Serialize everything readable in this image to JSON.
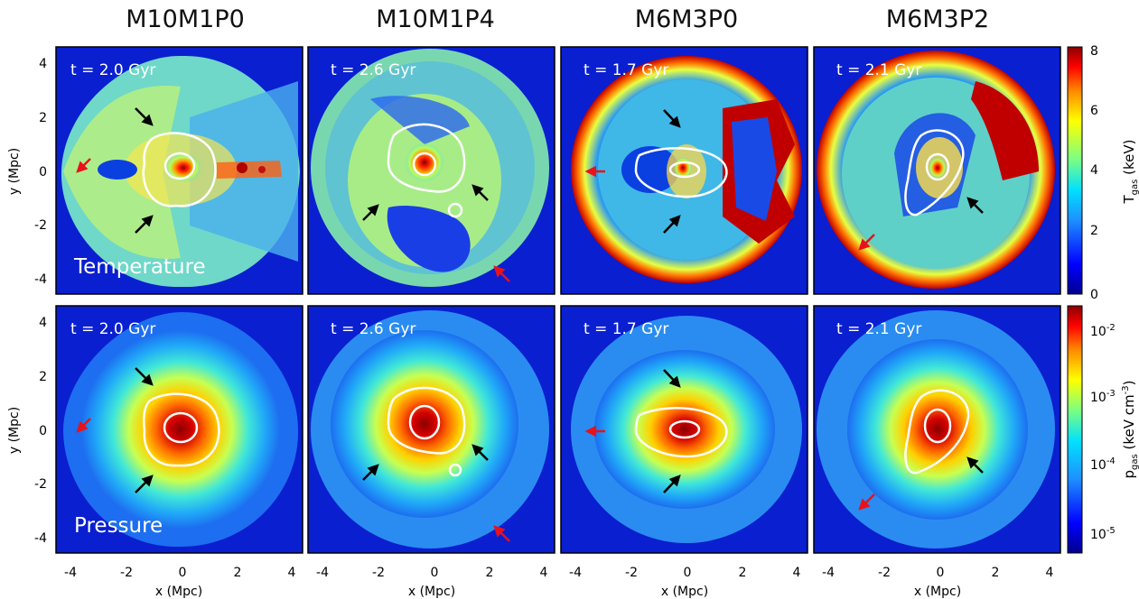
{
  "columns": [
    {
      "title": "M10M1P0",
      "time": "t = 2.0 Gyr"
    },
    {
      "title": "M10M1P4",
      "time": "t = 2.6 Gyr"
    },
    {
      "title": "M6M3P0",
      "time": "t = 1.7 Gyr"
    },
    {
      "title": "M6M3P2",
      "time": "t = 2.1 Gyr"
    }
  ],
  "rows": [
    {
      "label": "Temperature"
    },
    {
      "label": "Pressure"
    }
  ],
  "axes": {
    "xlabel": "x (Mpc)",
    "ylabel": "y (Mpc)",
    "xticks": [
      "-4",
      "-2",
      "0",
      "2",
      "4"
    ],
    "yticks": [
      "4",
      "2",
      "0",
      "-2",
      "-4"
    ]
  },
  "colorbars": {
    "temperature": {
      "label_main": "T",
      "label_sub": "gas",
      "label_unit": " (keV)",
      "ticks": [
        "8",
        "6",
        "4",
        "2",
        "0"
      ]
    },
    "pressure": {
      "label_main": "p",
      "label_sub": "gas",
      "label_unit": " (keV cm",
      "label_exp": "-3",
      "label_close": ")",
      "ticks": [
        {
          "base": "10",
          "exp": "-2"
        },
        {
          "base": "10",
          "exp": "-3"
        },
        {
          "base": "10",
          "exp": "-4"
        },
        {
          "base": "10",
          "exp": "-5"
        }
      ]
    }
  },
  "colors": {
    "background_field": "#0a1fd0",
    "contour": "#ffffff",
    "arrow_primary": "#000000",
    "arrow_secondary": "#e8121b"
  }
}
